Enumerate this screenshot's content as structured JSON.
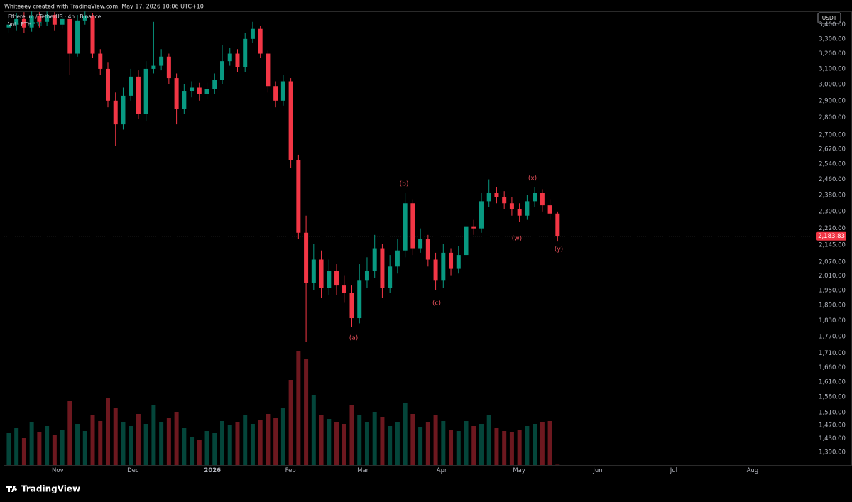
{
  "header": {
    "credit": "Whiteeey created with TradingView.com, May 17, 2026 10:06 UTC+10"
  },
  "footer": {
    "brand": "TradingView"
  },
  "chart_data": {
    "type": "candlestick",
    "title": "Ethereum / TetherUS · 4h · Binance",
    "volume_label": "Vol · ETH",
    "axis_unit": "USDT",
    "log_scale": true,
    "grid": false,
    "up_color": "#089981",
    "down_color": "#f23645",
    "annotation_color": "#e8505b",
    "current_price": 2183.83,
    "current_price_label": "2,183.83",
    "annotations": [
      "(a)",
      "(b)",
      "(c)",
      "(w)",
      "(x)",
      "(y)"
    ],
    "xlim": [
      -0.6,
      105.6
    ],
    "xticks": [
      {
        "value": 6.42,
        "label": "Nov"
      },
      {
        "value": 16.29,
        "label": "Dec"
      },
      {
        "value": 26.72,
        "label": "2026"
      },
      {
        "value": 36.96,
        "label": "Feb"
      },
      {
        "value": 46.46,
        "label": "Mar"
      },
      {
        "value": 56.8,
        "label": "Apr"
      },
      {
        "value": 66.95,
        "label": "May"
      },
      {
        "value": 77.28,
        "label": "Jun"
      },
      {
        "value": 87.24,
        "label": "Jul"
      },
      {
        "value": 97.58,
        "label": "Aug"
      }
    ],
    "ylim": [
      1353,
      3496
    ],
    "yticks": [
      {
        "value": 3400,
        "label": "3,400.00"
      },
      {
        "value": 3300,
        "label": "3,300.00"
      },
      {
        "value": 3200,
        "label": "3,200.00"
      },
      {
        "value": 3100,
        "label": "3,100.00"
      },
      {
        "value": 3000,
        "label": "3,000.00"
      },
      {
        "value": 2900,
        "label": "2,900.00"
      },
      {
        "value": 2800,
        "label": "2,800.00"
      },
      {
        "value": 2700,
        "label": "2,700.00"
      },
      {
        "value": 2620,
        "label": "2,620.00"
      },
      {
        "value": 2540,
        "label": "2,540.00"
      },
      {
        "value": 2460,
        "label": "2,460.00"
      },
      {
        "value": 2380,
        "label": "2,380.00"
      },
      {
        "value": 2300,
        "label": "2,300.00"
      },
      {
        "value": 2220,
        "label": "2,220.00"
      },
      {
        "value": 2145,
        "label": "2,145.00"
      },
      {
        "value": 2070,
        "label": "2,070.00"
      },
      {
        "value": 2010,
        "label": "2,010.00"
      },
      {
        "value": 1950,
        "label": "1,950.00"
      },
      {
        "value": 1890,
        "label": "1,890.00"
      },
      {
        "value": 1830,
        "label": "1,830.00"
      },
      {
        "value": 1770,
        "label": "1,770.00"
      },
      {
        "value": 1710,
        "label": "1,710.00"
      },
      {
        "value": 1660,
        "label": "1,660.00"
      },
      {
        "value": 1610,
        "label": "1,610.00"
      },
      {
        "value": 1560,
        "label": "1,560.00"
      },
      {
        "value": 1510,
        "label": "1,510.00"
      },
      {
        "value": 1470,
        "label": "1,470.00"
      },
      {
        "value": 1430,
        "label": "1,430.00"
      },
      {
        "value": 1390,
        "label": "1,390.00"
      }
    ],
    "candles": {
      "open": [
        3380,
        3400,
        3440,
        3380,
        3460,
        3420,
        3470,
        3400,
        3440,
        3200,
        3430,
        3460,
        3200,
        3100,
        2900,
        2760,
        2930,
        3050,
        2820,
        3100,
        3120,
        3180,
        3040,
        2850,
        2960,
        2980,
        2940,
        2970,
        3030,
        3150,
        3200,
        3110,
        3300,
        3370,
        3200,
        2990,
        2900,
        3020,
        2560,
        2200,
        1980,
        2080,
        1960,
        2030,
        1970,
        1940,
        1840,
        1990,
        2030,
        2130,
        1960,
        2050,
        2120,
        2340,
        2130,
        2170,
        2080,
        1990,
        2110,
        2040,
        2100,
        2230,
        2220,
        2350,
        2390,
        2370,
        2340,
        2310,
        2280,
        2350,
        2390,
        2330,
        2290
      ],
      "high": [
        3450,
        3480,
        3490,
        3495,
        3490,
        3495,
        3490,
        3480,
        3460,
        3470,
        3495,
        3480,
        3230,
        3140,
        2950,
        2980,
        3100,
        3090,
        3150,
        3420,
        3230,
        3200,
        3070,
        3000,
        3020,
        3010,
        3010,
        3070,
        3260,
        3240,
        3230,
        3340,
        3420,
        3390,
        3220,
        3020,
        3060,
        3040,
        2590,
        2280,
        2150,
        2120,
        2080,
        2060,
        2010,
        1970,
        2060,
        2090,
        2190,
        2150,
        2100,
        2170,
        2390,
        2360,
        2220,
        2190,
        2110,
        2150,
        2130,
        2140,
        2270,
        2260,
        2390,
        2460,
        2420,
        2400,
        2370,
        2340,
        2380,
        2420,
        2410,
        2360,
        2300
      ],
      "low": [
        3340,
        3360,
        3340,
        3350,
        3380,
        3390,
        3360,
        3370,
        3060,
        3180,
        3400,
        3170,
        3060,
        2860,
        2640,
        2730,
        2900,
        2790,
        2780,
        3070,
        3090,
        3000,
        2760,
        2820,
        2920,
        2900,
        2910,
        2940,
        3000,
        3120,
        3080,
        3080,
        3270,
        3170,
        2950,
        2860,
        2870,
        2520,
        2170,
        1750,
        1950,
        1920,
        1930,
        1930,
        1900,
        1805,
        1820,
        1960,
        2000,
        1920,
        1940,
        2020,
        2090,
        2100,
        2110,
        2050,
        1950,
        1960,
        2010,
        2020,
        2080,
        2190,
        2200,
        2320,
        2340,
        2310,
        2280,
        2250,
        2260,
        2320,
        2300,
        2260,
        2160
      ],
      "close": [
        3400,
        3440,
        3380,
        3460,
        3420,
        3470,
        3400,
        3440,
        3200,
        3430,
        3460,
        3200,
        3100,
        2900,
        2760,
        2930,
        3050,
        2820,
        3100,
        3120,
        3180,
        3040,
        2850,
        2960,
        2980,
        2940,
        2970,
        3030,
        3150,
        3200,
        3110,
        3300,
        3370,
        3200,
        2990,
        2900,
        3020,
        2560,
        2200,
        1980,
        2080,
        1960,
        2030,
        1970,
        1940,
        1840,
        1990,
        2030,
        2130,
        1960,
        2050,
        2120,
        2340,
        2130,
        2170,
        2080,
        1990,
        2110,
        2040,
        2100,
        2230,
        2220,
        2350,
        2390,
        2370,
        2340,
        2310,
        2280,
        2350,
        2390,
        2330,
        2290,
        2183.83
      ],
      "volume": [
        45000,
        52000,
        38000,
        60000,
        47000,
        55000,
        42000,
        50000,
        90000,
        58000,
        48000,
        70000,
        62000,
        95000,
        80000,
        60000,
        55000,
        72000,
        58000,
        85000,
        60000,
        66000,
        75000,
        52000,
        40000,
        35000,
        48000,
        45000,
        62000,
        56000,
        60000,
        70000,
        58000,
        64000,
        72000,
        66000,
        80000,
        120000,
        160000,
        150000,
        98000,
        70000,
        65000,
        60000,
        58000,
        85000,
        70000,
        60000,
        75000,
        68000,
        55000,
        60000,
        88000,
        72000,
        54000,
        60000,
        70000,
        62000,
        50000,
        48000,
        62000,
        55000,
        58000,
        70000,
        52000,
        48000,
        46000,
        50000,
        55000,
        58000,
        60000,
        62000,
        531
      ]
    }
  }
}
